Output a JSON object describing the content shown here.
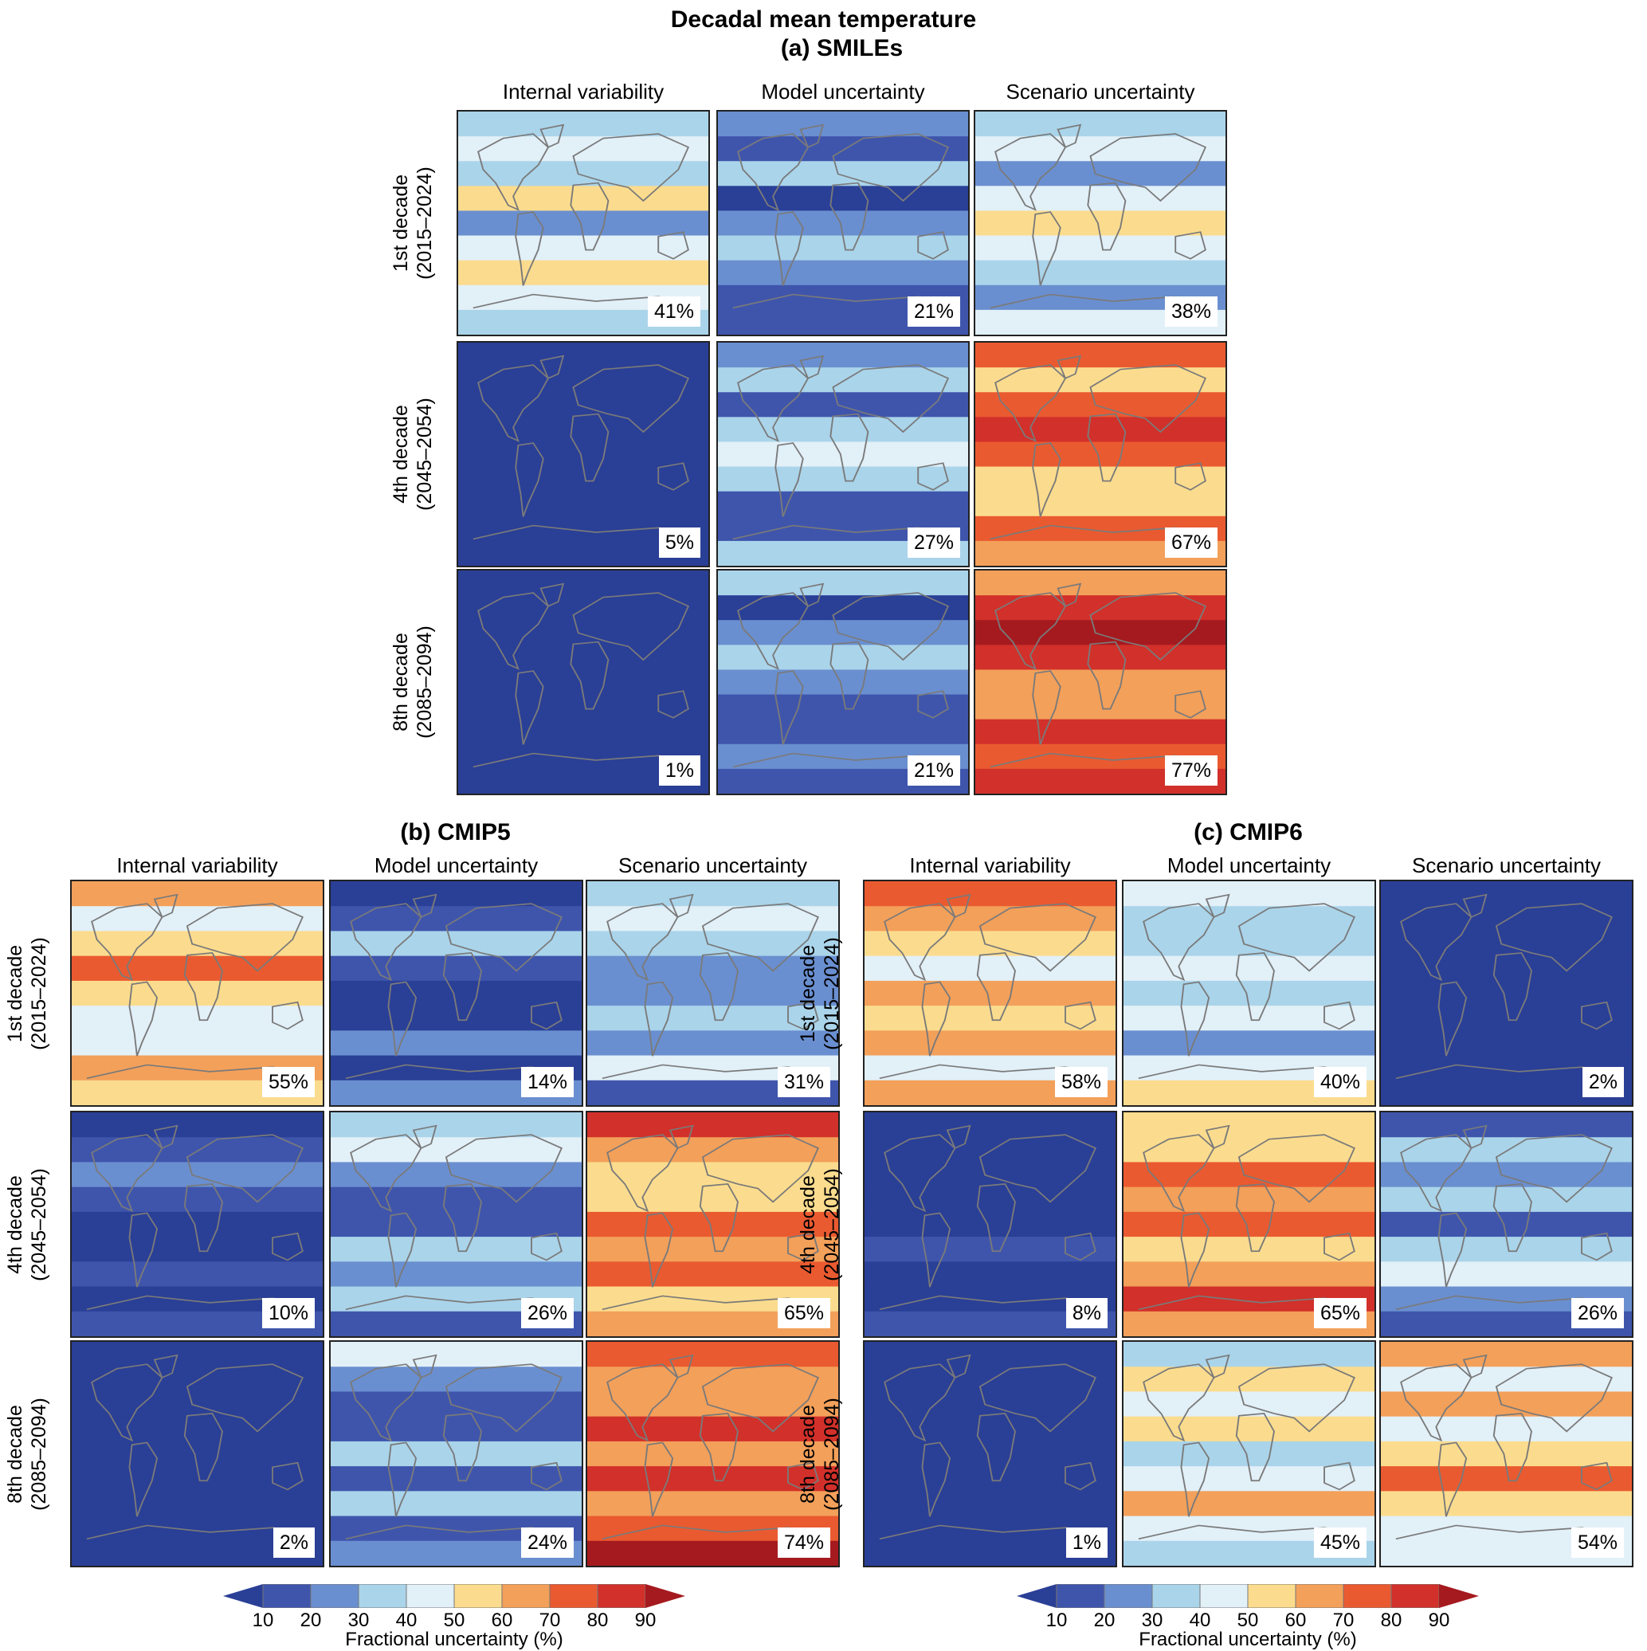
{
  "title": "Decadal mean temperature",
  "chart_data": {
    "type": "heatmap",
    "title": "Decadal mean temperature",
    "variable": "Fractional uncertainty (%)",
    "colorbar": {
      "label": "Fractional uncertainty (%)",
      "ticks": [
        10,
        20,
        30,
        40,
        50,
        60,
        70,
        80,
        90
      ],
      "extend": "both",
      "colors": [
        "#2a3f96",
        "#3f55ac",
        "#6a8fd0",
        "#aad4ea",
        "#e2f0f8",
        "#fbdc8e",
        "#f3a05a",
        "#ea5a30",
        "#d2302a",
        "#a51a1f"
      ]
    },
    "columns": [
      "Internal variability",
      "Model uncertainty",
      "Scenario uncertainty"
    ],
    "rows": [
      {
        "label": "1st decade",
        "period": "(2015–2024)"
      },
      {
        "label": "4th decade",
        "period": "(2045–2054)"
      },
      {
        "label": "8th decade",
        "period": "(2085–2094)"
      }
    ],
    "groups": [
      {
        "id": "a",
        "title": "(a) SMILEs",
        "values": [
          [
            41,
            21,
            38
          ],
          [
            5,
            27,
            67
          ],
          [
            1,
            21,
            77
          ]
        ]
      },
      {
        "id": "b",
        "title": "(b) CMIP5",
        "values": [
          [
            55,
            14,
            31
          ],
          [
            10,
            26,
            65
          ],
          [
            2,
            24,
            74
          ]
        ]
      },
      {
        "id": "c",
        "title": "(c) CMIP6",
        "values": [
          [
            58,
            40,
            2
          ],
          [
            8,
            65,
            26
          ],
          [
            1,
            45,
            54
          ]
        ]
      }
    ]
  }
}
